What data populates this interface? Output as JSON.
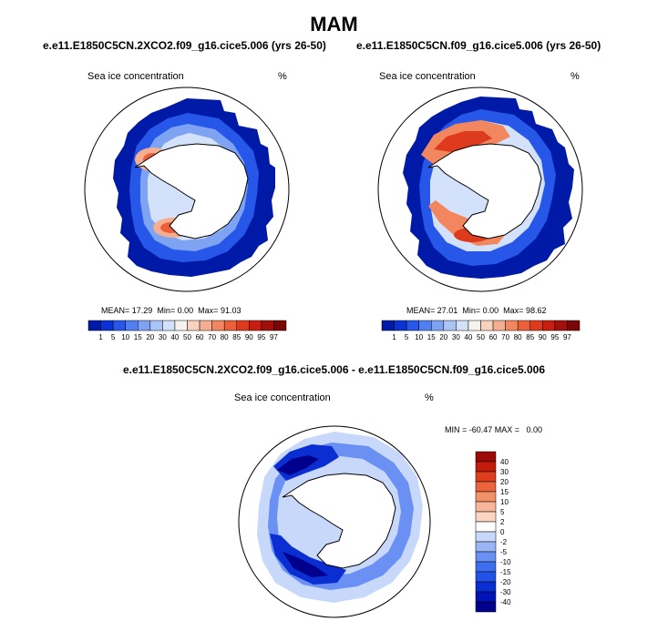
{
  "figure": {
    "title": "MAM",
    "diff_title": "e.e11.E1850C5CN.2XCO2.f09_g16.cice5.006 - e.e11.E1850C5CN.f09_g16.cice5.006"
  },
  "colors": {
    "seq": [
      "#001aa8",
      "#0a33d6",
      "#2657e8",
      "#4f7ff0",
      "#7da3f2",
      "#aac4f6",
      "#d3e2fa",
      "#f6f3ee",
      "#f7d3bf",
      "#f5ae8f",
      "#f2865f",
      "#ec5f3a",
      "#dd3a1e",
      "#c71e10",
      "#a30f0a",
      "#7a0606"
    ],
    "diff": [
      "#00008c",
      "#0013b4",
      "#0b2ed2",
      "#2253e6",
      "#3d6eee",
      "#6a90f3",
      "#99b5f6",
      "#c7d8fa",
      "#ffffff",
      "#fbd5c2",
      "#f8b699",
      "#f29068",
      "#ec643c",
      "#de3e1d",
      "#c41c0c",
      "#9c0a05"
    ],
    "coast": "#000000",
    "land": "#ffffff"
  },
  "chart_data": [
    {
      "type": "heatmap",
      "panel": "left",
      "title": "e.e11.E1850C5CN.2XCO2.f09_g16.cice5.006 (yrs 26-50)",
      "variable": "Sea ice concentration",
      "units": "%",
      "mean_label": "MEAN=",
      "min_label": "Min=",
      "max_label": "Max=",
      "mean": "17.29",
      "min": "0.00",
      "max": "91.03",
      "colorbar_levels": [
        "1",
        "5",
        "10",
        "15",
        "20",
        "30",
        "40",
        "50",
        "60",
        "70",
        "80",
        "85",
        "90",
        "95",
        "97"
      ],
      "colorbar_orientation": "horizontal"
    },
    {
      "type": "heatmap",
      "panel": "right",
      "title": "e.e11.E1850C5CN.f09_g16.cice5.006 (yrs 26-50)",
      "variable": "Sea ice concentration",
      "units": "%",
      "mean_label": "MEAN=",
      "min_label": "Min=",
      "max_label": "Max=",
      "mean": "27.01",
      "min": "0.00",
      "max": "98.62",
      "colorbar_levels": [
        "1",
        "5",
        "10",
        "15",
        "20",
        "30",
        "40",
        "50",
        "60",
        "70",
        "80",
        "85",
        "90",
        "95",
        "97"
      ],
      "colorbar_orientation": "horizontal"
    },
    {
      "type": "heatmap",
      "panel": "difference",
      "variable": "Sea ice concentration",
      "units": "%",
      "stats_label": "MIN = -60.47 MAX =   0.00",
      "min": "-60.47",
      "max": "0.00",
      "colorbar_levels": [
        "40",
        "30",
        "20",
        "15",
        "10",
        "5",
        "2",
        "0",
        "-2",
        "-5",
        "-10",
        "-15",
        "-20",
        "-30",
        "-40"
      ],
      "colorbar_orientation": "vertical"
    }
  ]
}
